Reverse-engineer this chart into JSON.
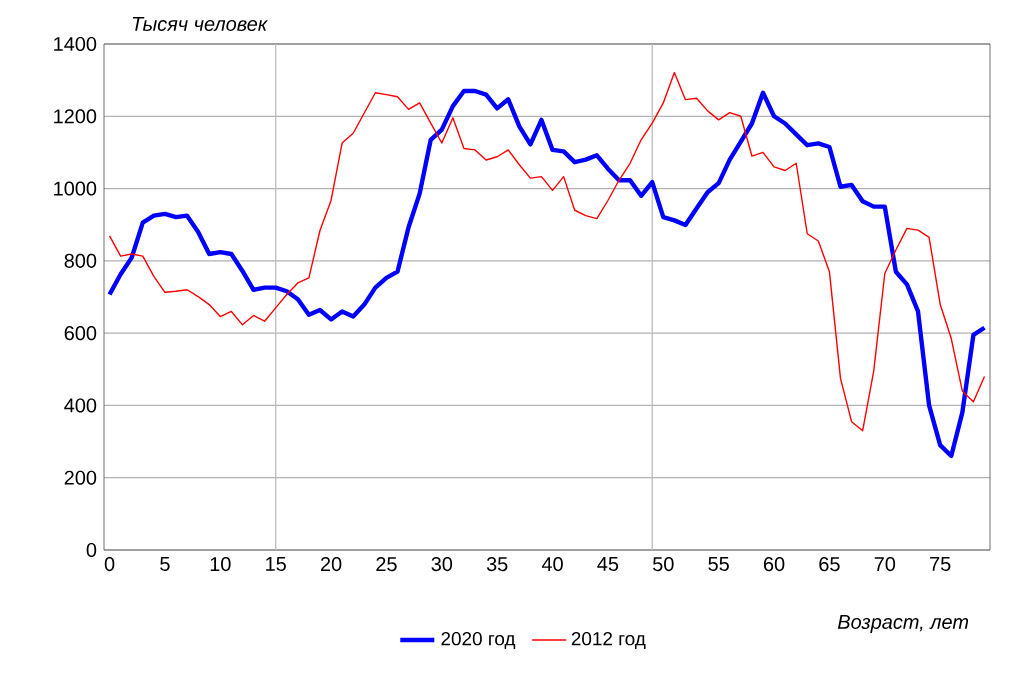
{
  "chart_data": {
    "type": "line",
    "title": "Тысяч  человек",
    "xlabel": "Возраст, лет",
    "x": [
      0,
      1,
      2,
      3,
      4,
      5,
      6,
      7,
      8,
      9,
      10,
      11,
      12,
      13,
      14,
      15,
      16,
      17,
      18,
      19,
      20,
      21,
      22,
      23,
      24,
      25,
      26,
      27,
      28,
      29,
      30,
      31,
      32,
      33,
      34,
      35,
      36,
      37,
      38,
      39,
      40,
      41,
      42,
      43,
      44,
      45,
      46,
      47,
      48,
      49,
      50,
      51,
      52,
      53,
      54,
      55,
      56,
      57,
      58,
      59,
      60,
      61,
      62,
      63,
      64,
      65,
      66,
      67,
      68,
      69,
      70,
      71,
      72,
      73,
      74,
      75,
      76,
      77,
      78,
      79
    ],
    "series": [
      {
        "name": "2020 год",
        "color": "#0000ff",
        "values": [
          707,
          763,
          809,
          906,
          925,
          930,
          921,
          925,
          880,
          819,
          824,
          819,
          772,
          720,
          726,
          726,
          716,
          694,
          651,
          664,
          638,
          660,
          646,
          679,
          726,
          753,
          770,
          893,
          986,
          1135,
          1163,
          1228,
          1270,
          1270,
          1260,
          1222,
          1247,
          1172,
          1122,
          1190,
          1107,
          1103,
          1073,
          1080,
          1092,
          1055,
          1023,
          1023,
          980,
          1018,
          921,
          912,
          899,
          945,
          990,
          1015,
          1080,
          1130,
          1180,
          1265,
          1200,
          1180,
          1150,
          1120,
          1125,
          1115,
          1005,
          1010,
          965,
          950,
          950,
          770,
          735,
          660,
          400,
          290,
          260,
          380,
          595,
          615
        ]
      },
      {
        "name": "2012 год",
        "color": "#ff0000",
        "values": [
          869,
          813,
          819,
          813,
          757,
          713,
          716,
          720,
          701,
          679,
          646,
          660,
          623,
          649,
          633,
          670,
          707,
          739,
          753,
          884,
          967,
          1126,
          1153,
          1209,
          1265,
          1260,
          1254,
          1219,
          1237,
          1181,
          1126,
          1196,
          1111,
          1107,
          1079,
          1088,
          1107,
          1066,
          1029,
          1033,
          995,
          1033,
          940,
          925,
          917,
          967,
          1023,
          1070,
          1135,
          1181,
          1237,
          1321,
          1246,
          1250,
          1215,
          1190,
          1210,
          1200,
          1090,
          1100,
          1060,
          1050,
          1070,
          875,
          855,
          770,
          475,
          355,
          330,
          495,
          765,
          830,
          890,
          885,
          865,
          680,
          585,
          440,
          410,
          480
        ]
      }
    ],
    "xlim": [
      -0.5,
      79.5
    ],
    "ylim": [
      0,
      1400
    ],
    "xticks": [
      0,
      5,
      10,
      15,
      20,
      25,
      30,
      35,
      40,
      45,
      50,
      55,
      60,
      65,
      70,
      75
    ],
    "yticks": [
      0,
      200,
      400,
      600,
      800,
      1000,
      1200,
      1400
    ],
    "grid": "y",
    "legend": "bottom",
    "ref_lines": [
      {
        "axis": "x",
        "value": 15,
        "color": "#c0c0c0"
      },
      {
        "axis": "x",
        "value": 49,
        "color": "#c0c0c0"
      }
    ]
  }
}
